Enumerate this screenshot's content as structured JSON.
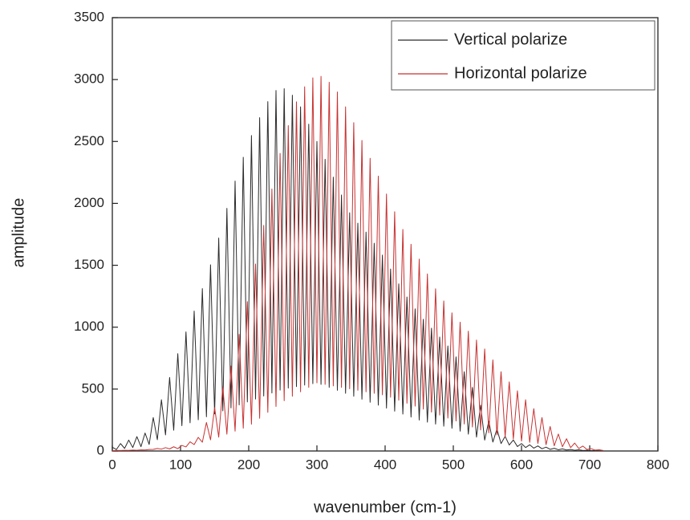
{
  "chart_data": {
    "type": "line",
    "xlabel": "wavenumber (cm-1)",
    "ylabel": "amplitude",
    "xlim": [
      0,
      800
    ],
    "xticks": [
      0,
      100,
      200,
      300,
      400,
      500,
      600,
      700,
      800
    ],
    "ylim": [
      0,
      3500
    ],
    "yticks": [
      0,
      500,
      1000,
      1500,
      2000,
      2500,
      3000,
      3500
    ],
    "legend": "upper right",
    "x": [
      0,
      6,
      12,
      18,
      24,
      30,
      36,
      42,
      48,
      54,
      60,
      66,
      72,
      78,
      84,
      90,
      96,
      102,
      108,
      114,
      120,
      126,
      132,
      138,
      144,
      150,
      156,
      162,
      168,
      174,
      180,
      186,
      192,
      198,
      204,
      210,
      216,
      222,
      228,
      234,
      240,
      246,
      252,
      258,
      264,
      270,
      276,
      282,
      288,
      294,
      300,
      306,
      312,
      318,
      324,
      330,
      336,
      342,
      348,
      354,
      360,
      366,
      372,
      378,
      384,
      390,
      396,
      402,
      408,
      414,
      420,
      426,
      432,
      438,
      444,
      450,
      456,
      462,
      468,
      474,
      480,
      486,
      492,
      498,
      504,
      510,
      516,
      522,
      528,
      534,
      540,
      546,
      552,
      558,
      564,
      570,
      576,
      582,
      588,
      594,
      600,
      606,
      612,
      618,
      624,
      630,
      636,
      642,
      648,
      654,
      660,
      666,
      672,
      678,
      684,
      690,
      696,
      702,
      708,
      714,
      720
    ],
    "series": [
      {
        "name": "Vertical polarize",
        "color": "#2b2b2b",
        "values": [
          30,
          12,
          60,
          21,
          88,
          28,
          116,
          35,
          145,
          53,
          270,
          91,
          414,
          130,
          594,
          168,
          786,
          204,
          962,
          228,
          1130,
          252,
          1312,
          276,
          1504,
          300,
          1720,
          324,
          1960,
          348,
          2180,
          372,
          2372,
          396,
          2548,
          420,
          2692,
          444,
          2822,
          468,
          2912,
          492,
          2926,
          508,
          2874,
          520,
          2780,
          532,
          2640,
          544,
          2500,
          538,
          2356,
          514,
          2212,
          490,
          2068,
          466,
          1924,
          442,
          1840,
          418,
          1768,
          394,
          1678,
          370,
          1582,
          346,
          1470,
          322,
          1350,
          298,
          1244,
          274,
          1148,
          250,
          1064,
          233,
          992,
          217,
          920,
          200,
          848,
          183,
          760,
          160,
          640,
          136,
          514,
          112,
          370,
          88,
          240,
          72,
          177,
          60,
          118,
          48,
          89,
          36,
          60,
          28,
          50,
          23,
          41,
          18,
          31,
          13,
          22,
          10,
          17,
          8,
          12,
          6,
          10,
          4,
          6,
          3,
          5,
          2,
          4
        ]
      },
      {
        "name": "Horizontal polarize",
        "color": "#c83232",
        "values": [
          2,
          5,
          4,
          6,
          5,
          7,
          6,
          9,
          8,
          12,
          13,
          20,
          15,
          27,
          17,
          34,
          19,
          45,
          33,
          74,
          52,
          110,
          71,
          230,
          90,
          350,
          112,
          518,
          136,
          686,
          160,
          942,
          184,
          1206,
          216,
          1510,
          264,
          1822,
          312,
          2116,
          360,
          2404,
          406,
          2628,
          442,
          2820,
          478,
          2942,
          514,
          3014,
          550,
          3026,
          538,
          2978,
          526,
          2900,
          514,
          2780,
          502,
          2652,
          490,
          2508,
          478,
          2364,
          466,
          2220,
          454,
          2076,
          434,
          1932,
          410,
          1790,
          386,
          1670,
          362,
          1550,
          338,
          1430,
          314,
          1310,
          290,
          1212,
          266,
          1116,
          242,
          1040,
          218,
          968,
          194,
          896,
          170,
          824,
          147,
          736,
          130,
          640,
          113,
          558,
          97,
          486,
          80,
          414,
          70,
          342,
          61,
          270,
          51,
          198,
          42,
          137,
          34,
          99,
          27,
          64,
          20,
          40,
          12,
          19,
          7,
          10,
          3
        ]
      }
    ]
  }
}
